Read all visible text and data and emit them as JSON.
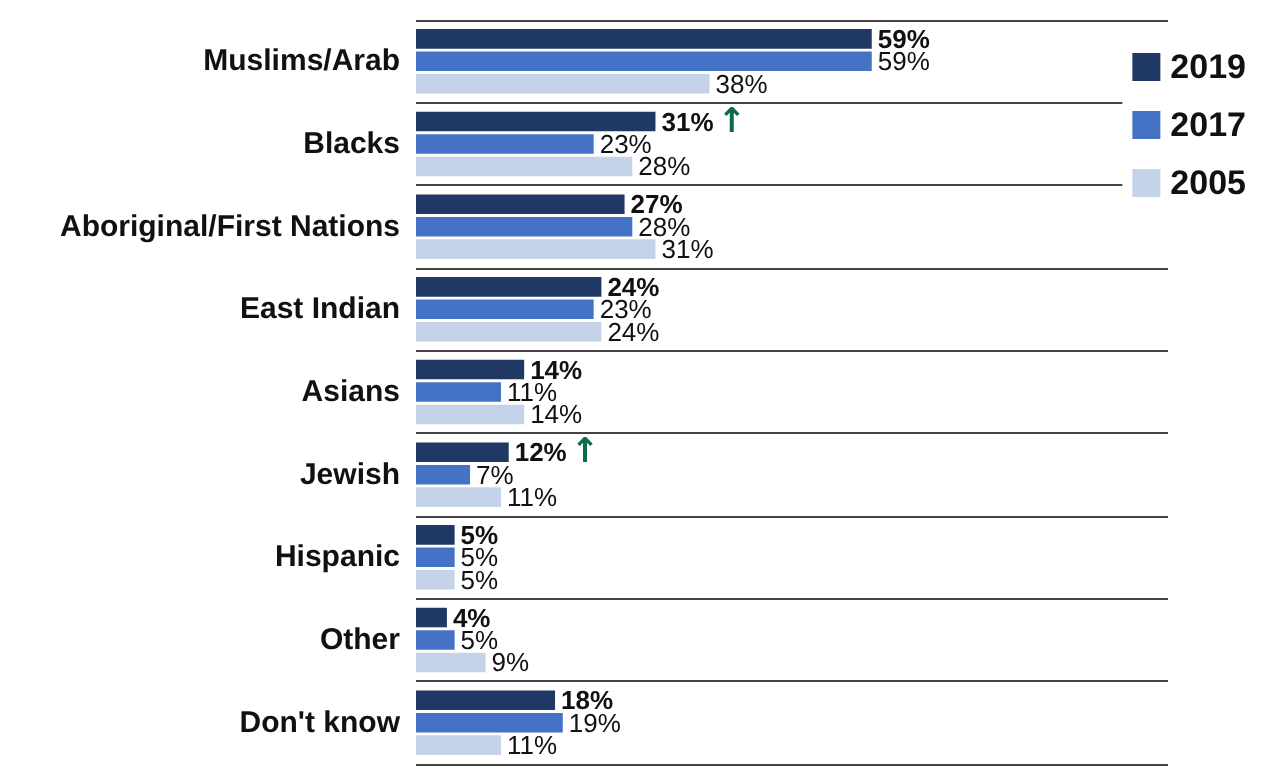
{
  "chart_data": {
    "type": "bar",
    "orientation": "horizontal",
    "categories": [
      "Muslims/Arab",
      "Blacks",
      "Aboriginal/First Nations",
      "East Indian",
      "Asians",
      "Jewish",
      "Hispanic",
      "Other",
      "Don't know"
    ],
    "series": [
      {
        "name": "2019",
        "color": "#1f3864",
        "values": [
          59,
          31,
          27,
          24,
          14,
          12,
          5,
          4,
          18
        ],
        "value_labels": [
          "59%",
          "31%↑",
          "27%",
          "24%",
          "14%",
          "12%↑",
          "5%",
          "4%",
          "18%"
        ]
      },
      {
        "name": "2017",
        "color": "#4472c4",
        "values": [
          59,
          23,
          28,
          23,
          11,
          7,
          5,
          5,
          19
        ],
        "value_labels": [
          "59%",
          "23%",
          "28%",
          "23%",
          "11%",
          "7%",
          "5%",
          "5%",
          "19%"
        ]
      },
      {
        "name": "2005",
        "color": "#c5d3ea",
        "values": [
          38,
          28,
          31,
          24,
          14,
          11,
          5,
          9,
          11
        ],
        "value_labels": [
          "38%",
          "28%",
          "31%",
          "24%",
          "14%",
          "11%",
          "5%",
          "9%",
          "11%"
        ]
      }
    ],
    "grid": "y",
    "legend": "top right"
  }
}
